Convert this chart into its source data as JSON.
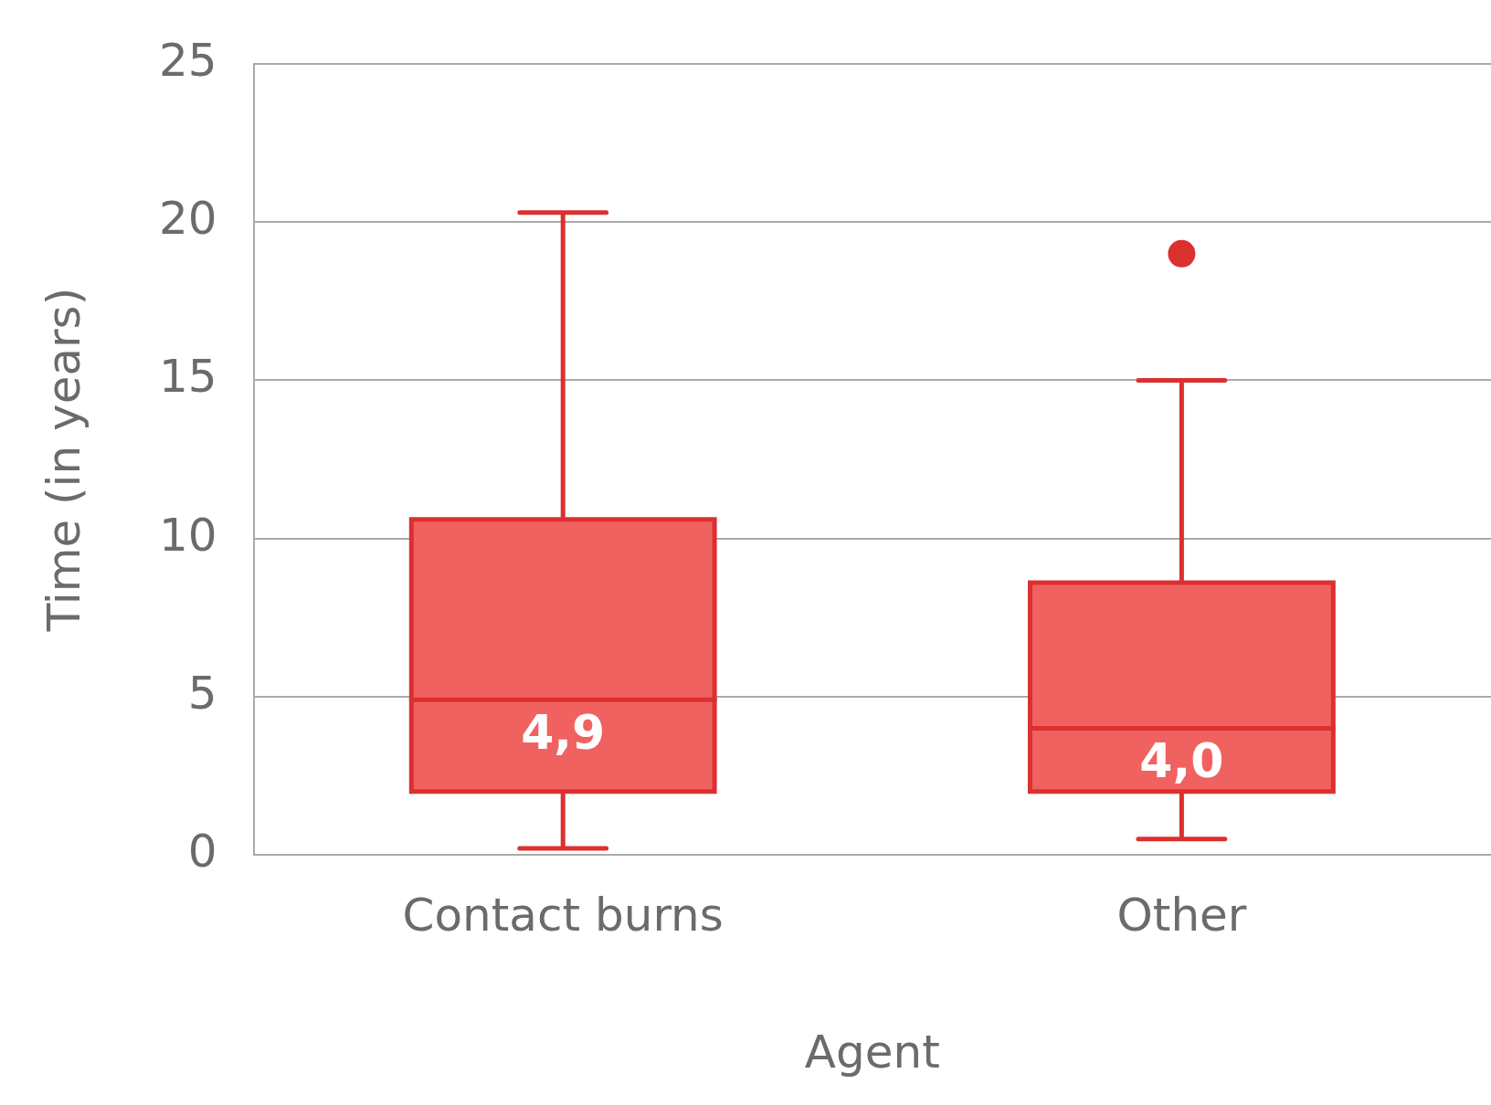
{
  "chart_data": {
    "type": "box",
    "xlabel": "Agent",
    "ylabel": "Time (in years)",
    "categories": [
      "Contact burns",
      "Other"
    ],
    "boxes": [
      {
        "low": 0.2,
        "q1": 2.0,
        "median": 4.9,
        "q3": 10.6,
        "high": 20.3
      },
      {
        "low": 0.5,
        "q1": 2.0,
        "median": 4.0,
        "q3": 8.6,
        "high": 15.0,
        "outliers": [
          19.0
        ]
      }
    ],
    "color": "#f06260",
    "ylim": [
      0,
      25
    ],
    "yticks": [
      0,
      5,
      10,
      15,
      20,
      25
    ],
    "grid": "y",
    "annotations": [
      {
        "text": "4,9",
        "x": "Contact burns",
        "y": 4.9
      },
      {
        "text": "4,0",
        "x": "Other",
        "y": 4.0
      }
    ]
  }
}
